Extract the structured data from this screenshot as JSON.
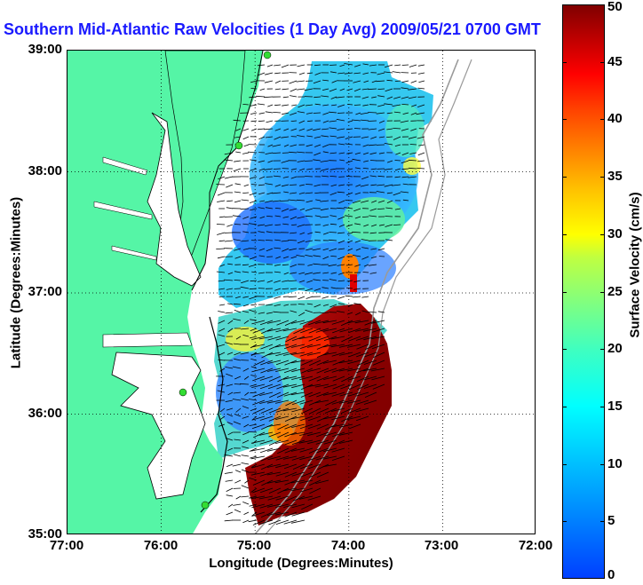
{
  "title": "Southern Mid-Atlantic Raw Velocities (1 Day Avg) 2009/05/21 0700 GMT",
  "axes": {
    "xlabel": "Longitude (Degrees:Minutes)",
    "ylabel": "Latitude (Degrees:Minutes)",
    "xticks": [
      "77:00",
      "76:00",
      "75:00",
      "74:00",
      "73:00",
      "72:00"
    ],
    "yticks": [
      "39:00",
      "38:00",
      "37:00",
      "36:00",
      "35:00"
    ],
    "xlim": [
      -77,
      -72
    ],
    "ylim": [
      35,
      39
    ],
    "grid": true
  },
  "colorbar": {
    "label": "Surface Velocity (cm/s)",
    "ticks": [
      "0",
      "5",
      "10",
      "15",
      "20",
      "25",
      "30",
      "35",
      "40",
      "45",
      "50"
    ],
    "range": [
      0,
      50
    ],
    "colors": [
      "#0040ff",
      "#00c0ff",
      "#00ffff",
      "#80ff80",
      "#ffff00",
      "#ff8000",
      "#ff0000",
      "#800000"
    ]
  },
  "map": {
    "land_color": "#55f5a6",
    "water_color": "#ffffff",
    "bathymetry_color": "#9a9a9a",
    "station_color": "#33dd33",
    "stations_count": 4
  }
}
